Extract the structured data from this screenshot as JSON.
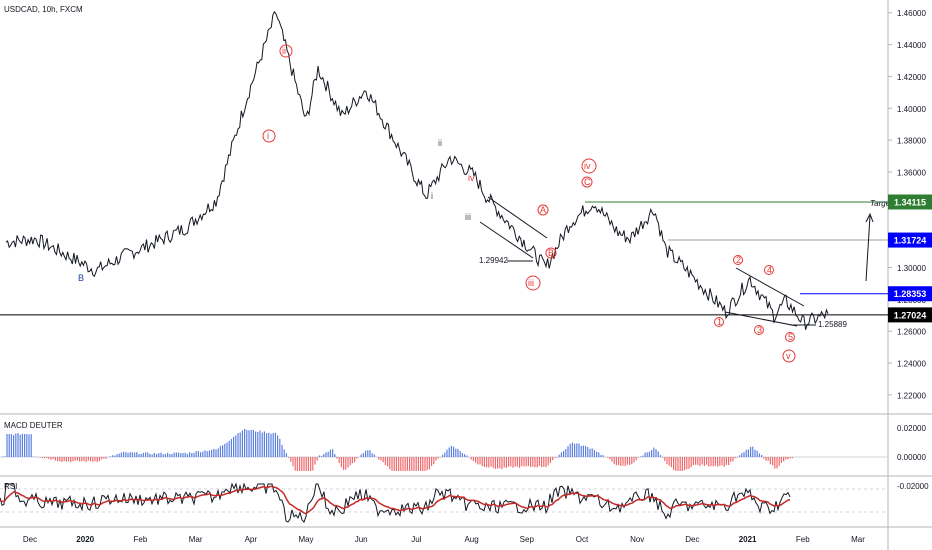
{
  "header": {
    "symbol_line": "USDCAD, 10h, FXCM"
  },
  "panes": {
    "macd_title": "MACD DEUTER",
    "rsi_title": "RSI"
  },
  "chart_data": {
    "type": "line",
    "x_ticks": [
      "Dec",
      "2020",
      "Feb",
      "Mar",
      "Apr",
      "May",
      "Jun",
      "Jul",
      "Aug",
      "Sep",
      "Oct",
      "Nov",
      "Dec",
      "2021",
      "Feb",
      "Mar"
    ],
    "y_ticks": [
      "1.46000",
      "1.44000",
      "1.42000",
      "1.40000",
      "1.38000",
      "1.36000",
      "1.34000",
      "1.32000",
      "1.30000",
      "1.28000",
      "1.26000",
      "1.24000",
      "1.22000"
    ],
    "ylim": [
      1.208,
      1.468
    ],
    "macd_ticks": [
      "0.02000",
      "0.00000",
      "-0.02000"
    ],
    "price_x": [
      0,
      0.5,
      1,
      1.5,
      2,
      2.5,
      3,
      3.5,
      4,
      4.5,
      5,
      5.2,
      5.6,
      6,
      6.4,
      6.8,
      7,
      7.4,
      7.8,
      8,
      8.5,
      9,
      9.4,
      9.8,
      10.2,
      10.4,
      10.8,
      11,
      11.3,
      11.6,
      12,
      12.4,
      12.8,
      13,
      13.3,
      13.7
    ],
    "price_y": [
      1.316,
      1.318,
      1.308,
      1.298,
      1.308,
      1.316,
      1.325,
      1.342,
      1.405,
      1.46,
      1.392,
      1.425,
      1.395,
      1.412,
      1.385,
      1.358,
      1.345,
      1.369,
      1.358,
      1.345,
      1.322,
      1.3,
      1.328,
      1.341,
      1.322,
      1.318,
      1.337,
      1.311,
      1.3,
      1.288,
      1.272,
      1.293,
      1.27,
      1.279,
      1.265,
      1.271
    ],
    "price_lines": [
      {
        "label": "1.34115",
        "value": 1.34115,
        "color": "#2e7d32"
      },
      {
        "label": "1.31724",
        "value": 1.31724,
        "color": "#0000ff"
      },
      {
        "label": "1.28353",
        "value": 1.28353,
        "color": "#0000ff"
      },
      {
        "label": "1.27024",
        "value": 1.27024,
        "color": "#000000"
      }
    ],
    "annotations": {
      "target": "Target",
      "low1": "1.29942",
      "low2": "1.25889",
      "wave_B": "B",
      "wave_i": "i",
      "wave_ii": "ii",
      "wave_iii": "iii",
      "wave_iv": "iv",
      "wave_A": "A",
      "wave_B2": "B",
      "wave_C": "C",
      "c_i": "i",
      "c_ii": "ii",
      "c_iii": "iii",
      "c_iv": "iv",
      "c_v": "v",
      "n1": "1",
      "n2": "2",
      "n3": "3",
      "n4": "4",
      "n5": "5"
    }
  },
  "colors": {
    "price": "#131722",
    "macd_up": "#5b7fe0",
    "macd_down": "#f0686a",
    "rsi_signal": "#c62828",
    "wave_red": "#e53935",
    "wave_blue": "#1e3faa",
    "wave_gray": "#555555"
  }
}
